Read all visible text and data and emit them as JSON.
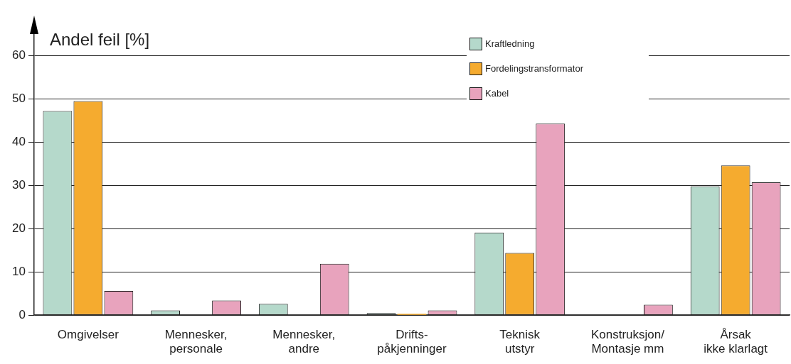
{
  "chart_data": {
    "type": "bar",
    "ylabel": "Andel feil [%]",
    "categories": [
      "Omgivelser",
      "Mennesker,\npersonale",
      "Mennesker,\nandre",
      "Drifts-\npåkjenninger",
      "Teknisk\nutstyr",
      "Konstruksjon/\nMontasje mm",
      "Årsak\nikke klarlagt"
    ],
    "series": [
      {
        "name": "Kraftledning",
        "color": "#b5d9cb",
        "values": [
          47.2,
          1.1,
          2.6,
          0.5,
          19.1,
          0,
          29.8
        ]
      },
      {
        "name": "Fordelingstransformator",
        "color": "#f5ab2f",
        "values": [
          49.5,
          0,
          0,
          0.3,
          14.4,
          0,
          34.6
        ]
      },
      {
        "name": "Kabel",
        "color": "#e8a3bd",
        "values": [
          5.6,
          3.4,
          11.9,
          1.1,
          44.3,
          2.4,
          30.7
        ]
      }
    ],
    "ylim": [
      0,
      65
    ],
    "yticks": [
      0,
      10,
      20,
      30,
      40,
      50,
      60
    ],
    "grid": "y",
    "legend": "top right"
  }
}
